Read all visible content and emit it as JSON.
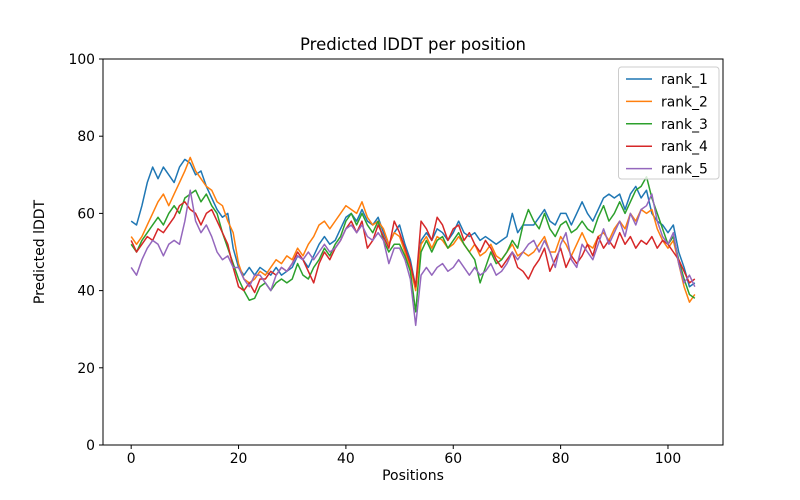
{
  "figure": {
    "background": "#ffffff",
    "text_color": "#000000"
  },
  "chart_data": {
    "type": "line",
    "title": "Predicted lDDT per position",
    "xlabel": "Positions",
    "ylabel": "Predicted lDDT",
    "xlim": [
      -5.25,
      110.25
    ],
    "ylim": [
      0,
      100
    ],
    "xticks": [
      0,
      20,
      40,
      60,
      80,
      100
    ],
    "yticks": [
      0,
      20,
      40,
      60,
      80,
      100
    ],
    "grid": false,
    "legend_position": "upper right",
    "x_start": 0,
    "x_step": 1,
    "n_points": 106,
    "series": [
      {
        "name": "rank_1",
        "color": "#1f77b4",
        "values": [
          58,
          57,
          62,
          68,
          72,
          69,
          72,
          70,
          68,
          72,
          74,
          73,
          70,
          71,
          67,
          64,
          61,
          59,
          60,
          51,
          46,
          44,
          46,
          44,
          46,
          45,
          44,
          46,
          44,
          45,
          46,
          49,
          48,
          46,
          49,
          52,
          54,
          52,
          53,
          56,
          59,
          60,
          58,
          61,
          58,
          57,
          59,
          55,
          52,
          55,
          57,
          52,
          48,
          41,
          53,
          55,
          53,
          56,
          55,
          53,
          55,
          58,
          55,
          54,
          55,
          53,
          54,
          53,
          52,
          53,
          54,
          60,
          55,
          57,
          57,
          57,
          59,
          61,
          58,
          57,
          60,
          60,
          57,
          60,
          63,
          60,
          58,
          61,
          64,
          65,
          64,
          65,
          61,
          65,
          67,
          64,
          66,
          60,
          58,
          57,
          55,
          57,
          50,
          46,
          41,
          42
        ]
      },
      {
        "name": "rank_2",
        "color": "#ff7f0e",
        "values": [
          54,
          52,
          54,
          57,
          60,
          63,
          65,
          62,
          65,
          68,
          71,
          74.5,
          71,
          69,
          67,
          66,
          63,
          62,
          58,
          55,
          47,
          43,
          42,
          43,
          45,
          44,
          46,
          48,
          47,
          49,
          48,
          51,
          49,
          52,
          54,
          57,
          58,
          56,
          58,
          60,
          62,
          61,
          60,
          63,
          59,
          57,
          58,
          56,
          52,
          55,
          54,
          50,
          46,
          40,
          52,
          54,
          51,
          54,
          53,
          51,
          52,
          54,
          52,
          50,
          52,
          49,
          50,
          52,
          49,
          48,
          50,
          52,
          49,
          50,
          49,
          50,
          52,
          54,
          50,
          50,
          54,
          52,
          49,
          52,
          55,
          52,
          51,
          54,
          55,
          53,
          56,
          58,
          56,
          60,
          58,
          61,
          60,
          61,
          56,
          53,
          51,
          53,
          47,
          41,
          37,
          39
        ]
      },
      {
        "name": "rank_3",
        "color": "#2ca02c",
        "values": [
          52,
          50,
          53,
          55,
          57,
          59,
          57,
          60,
          62,
          60,
          64,
          65,
          66,
          63,
          65,
          62,
          60,
          55,
          51,
          47,
          43,
          40,
          37.5,
          38,
          41,
          42,
          40,
          42,
          43,
          42,
          43,
          47,
          44,
          43,
          46,
          48,
          51,
          49,
          52,
          54,
          58,
          60,
          57,
          60,
          57,
          55,
          58,
          53,
          50,
          52,
          52,
          49,
          45,
          34.5,
          50,
          53,
          50,
          53,
          54,
          51,
          53,
          55,
          52,
          50,
          48,
          42,
          46,
          50,
          47,
          48,
          50,
          53,
          51,
          57,
          61,
          58,
          56,
          60,
          56,
          54,
          57,
          58,
          55,
          56,
          58,
          56,
          55,
          59,
          62,
          58,
          60,
          63,
          60,
          63,
          66,
          67,
          69.5,
          64,
          60,
          56,
          52,
          54,
          48,
          43,
          39,
          38
        ]
      },
      {
        "name": "rank_4",
        "color": "#d62728",
        "values": [
          53,
          50,
          52,
          54,
          53,
          56,
          55,
          57,
          59,
          62,
          63,
          61,
          60,
          57,
          60,
          61,
          58,
          55,
          52,
          46,
          41,
          40,
          42,
          39.5,
          43,
          43,
          45,
          44,
          46,
          45,
          47,
          50,
          48,
          45,
          42,
          47,
          50,
          48,
          51,
          53,
          56,
          58,
          55,
          58,
          51,
          53,
          57,
          54,
          51,
          58,
          55,
          51,
          47,
          41,
          58,
          56,
          53,
          59,
          57,
          53,
          56,
          57,
          53,
          55,
          52,
          50,
          53,
          51,
          48,
          46,
          48,
          50,
          46,
          45,
          43,
          46,
          48,
          51,
          45,
          48,
          51,
          46,
          49,
          47,
          49,
          52,
          49,
          54,
          51,
          53,
          51,
          55,
          52,
          54,
          51,
          53,
          52,
          54,
          51,
          53,
          52,
          50,
          48,
          45,
          42,
          43
        ]
      },
      {
        "name": "rank_5",
        "color": "#9467bd",
        "values": [
          46,
          44,
          48,
          51,
          53,
          52,
          49,
          52,
          53,
          52,
          58,
          66,
          58,
          55,
          57,
          54,
          50,
          48,
          49,
          46,
          46,
          43,
          41,
          44,
          44,
          42,
          40,
          44,
          46,
          45,
          47,
          49,
          48,
          50,
          48,
          50,
          52,
          50,
          51,
          53,
          56,
          57,
          55,
          57,
          54,
          53,
          55,
          53,
          47,
          51,
          51,
          48,
          43,
          31,
          44,
          46,
          44,
          46,
          47,
          45,
          46,
          48,
          46,
          44,
          46,
          44,
          45,
          47,
          44,
          45,
          47,
          50,
          48,
          50,
          52,
          53,
          50,
          53,
          50,
          46,
          52,
          55,
          48,
          46,
          52,
          50,
          48,
          52,
          56,
          52,
          55,
          58,
          54,
          60,
          57,
          61,
          62,
          65,
          58,
          54,
          52,
          55,
          47,
          42,
          44,
          41
        ]
      }
    ]
  }
}
